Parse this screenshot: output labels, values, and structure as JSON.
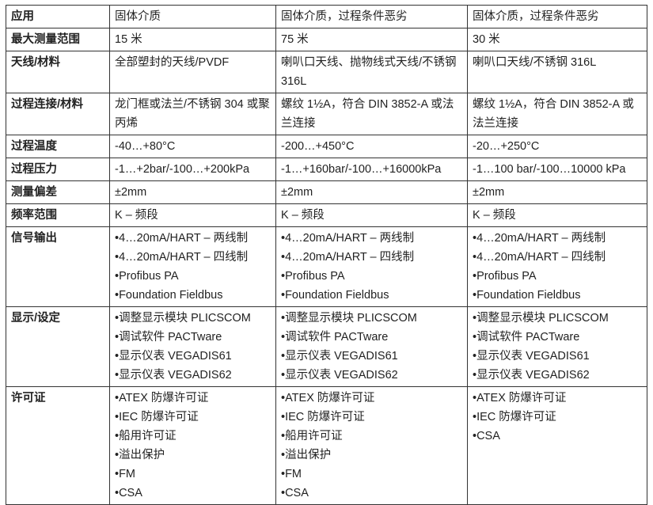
{
  "rows": [
    {
      "label": "应用",
      "cols": [
        "固体介质",
        "固体介质，过程条件恶劣",
        "固体介质，过程条件恶劣"
      ]
    },
    {
      "label": "最大测量范围",
      "cols": [
        "15 米",
        "75 米",
        "30 米"
      ]
    },
    {
      "label": "天线/材料",
      "cols": [
        "全部塑封的天线/PVDF",
        "喇叭口天线、抛物线式天线/不锈钢 316L",
        "喇叭口天线/不锈钢 316L"
      ]
    },
    {
      "label": "过程连接/材料",
      "cols": [
        "龙门框或法兰/不锈钢 304 或聚丙烯",
        "螺纹 1½A，符合 DIN 3852-A 或法兰连接",
        "螺纹 1½A，符合 DIN 3852-A 或法兰连接"
      ]
    },
    {
      "label": "过程温度",
      "cols": [
        "-40…+80°C",
        "-200…+450°C",
        "-20…+250°C"
      ]
    },
    {
      "label": "过程压力",
      "cols": [
        "-1…+2bar/-100…+200kPa",
        "-1…+160bar/-100…+16000kPa",
        "-1…100 bar/-100…10000 kPa"
      ]
    },
    {
      "label": "测量偏差",
      "cols": [
        "±2mm",
        "±2mm",
        "±2mm"
      ]
    },
    {
      "label": "频率范围",
      "cols": [
        "K – 频段",
        "K – 频段",
        "K – 频段"
      ]
    }
  ],
  "signal": {
    "label": "信号输出",
    "items": [
      "4…20mA/HART – 两线制",
      "4…20mA/HART – 四线制",
      "Profibus PA",
      "Foundation Fieldbus"
    ]
  },
  "display": {
    "label": "显示/设定",
    "items": [
      "调整显示模块 PLICSCOM",
      "调试软件 PACTware",
      "显示仪表 VEGADIS61",
      "显示仪表 VEGADIS62"
    ]
  },
  "license": {
    "label": "许可证",
    "col1": [
      "ATEX 防爆许可证",
      "IEC 防爆许可证",
      "船用许可证",
      "溢出保护",
      "FM",
      "CSA"
    ],
    "col2": [
      "ATEX 防爆许可证",
      "IEC 防爆许可证",
      "船用许可证",
      "溢出保护",
      "FM",
      "CSA"
    ],
    "col3": [
      "ATEX 防爆许可证",
      "IEC 防爆许可证",
      "CSA"
    ]
  }
}
